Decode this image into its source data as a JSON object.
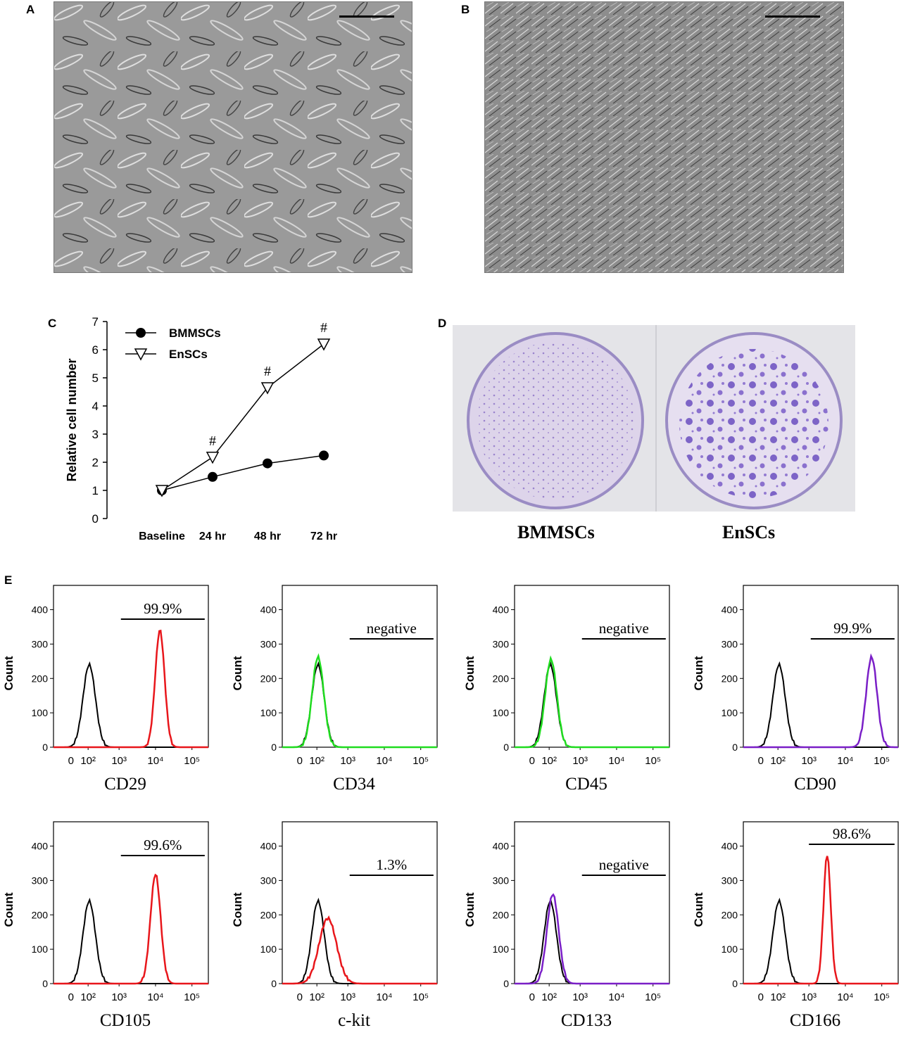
{
  "panels": {
    "a": "A",
    "b": "B",
    "c": "C",
    "d": "D",
    "e": "E"
  },
  "chart_data": {
    "type": "line",
    "categories": [
      "Baseline",
      "24 hr",
      "48 hr",
      "72 hr"
    ],
    "series": [
      {
        "name": "BMMSCs",
        "marker": "filled-circle",
        "values": [
          1.0,
          1.48,
          1.96,
          2.24
        ]
      },
      {
        "name": "EnSCs",
        "marker": "open-triangle-down",
        "values": [
          1.0,
          2.18,
          4.65,
          6.2
        ]
      }
    ],
    "annotations": [
      "",
      "#",
      "#",
      "#"
    ],
    "ylabel": "Relative cell number",
    "xlabel": "",
    "ylim": [
      0,
      7
    ],
    "yticks": [
      "0",
      "1",
      "2",
      "3",
      "4",
      "5",
      "6",
      "7"
    ],
    "legend_position": "top-left"
  },
  "dish_labels": [
    "BMMSCs",
    "EnSCs"
  ],
  "flow": {
    "ylabel": "Count",
    "yticks": [
      "0",
      "100",
      "200",
      "300",
      "400"
    ],
    "xticks": [
      "0",
      "10²",
      "10³",
      "10⁴",
      "10⁵"
    ],
    "plots": [
      {
        "marker": "CD29",
        "gate_label": "99.9%",
        "color": "#e8161b",
        "test_peak_log": 4.12,
        "test_height": 340,
        "test_width": 0.13
      },
      {
        "marker": "CD34",
        "gate_label": "negative",
        "color": "#1fdc1f",
        "test_peak_log": 2.18,
        "test_height": 262,
        "test_width": 0.16
      },
      {
        "marker": "CD45",
        "gate_label": "negative",
        "color": "#1fdc1f",
        "test_peak_log": 2.2,
        "test_height": 255,
        "test_width": 0.16
      },
      {
        "marker": "CD90",
        "gate_label": "99.9%",
        "color": "#7a1fc7",
        "test_peak_log": 4.72,
        "test_height": 262,
        "test_width": 0.15
      },
      {
        "marker": "CD105",
        "gate_label": "99.6%",
        "color": "#e8161b",
        "test_peak_log": 4.0,
        "test_height": 318,
        "test_width": 0.14
      },
      {
        "marker": "c-kit",
        "gate_label": "1.3%",
        "color": "#e8161b",
        "test_peak_log": 2.45,
        "test_height": 190,
        "test_width": 0.24
      },
      {
        "marker": "CD133",
        "gate_label": "negative",
        "color": "#7a1fc7",
        "test_peak_log": 2.25,
        "test_height": 260,
        "test_width": 0.16
      },
      {
        "marker": "CD166",
        "gate_label": "98.6%",
        "color": "#e8161b",
        "test_peak_log": 3.5,
        "test_height": 375,
        "test_width": 0.1
      }
    ]
  }
}
